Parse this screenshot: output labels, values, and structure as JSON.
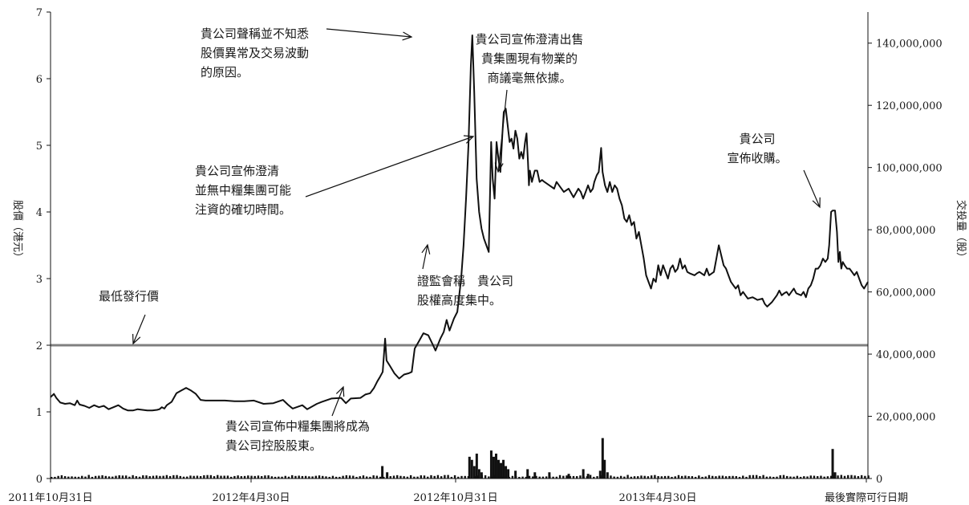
{
  "chart_data": {
    "type": "line",
    "x_ticks": [
      "2011年10月31日",
      "2012年4月30日",
      "2012年10月31日",
      "2013年4月30日",
      "最後實際可行日期"
    ],
    "y_left": {
      "label": "股價（港元）",
      "ticks": [
        "0",
        "1",
        "2",
        "3",
        "4",
        "5",
        "6",
        "7"
      ],
      "range": [
        0,
        7
      ]
    },
    "y_right": {
      "label": "交投量（股）",
      "ticks": [
        "0",
        "20,000,000",
        "40,000,000",
        "60,000,000",
        "80,000,000",
        "100,000,000",
        "120,000,000",
        "140,000,000"
      ],
      "range": [
        0,
        150000000
      ]
    },
    "reference_line": {
      "label": "最低發行價",
      "value": 2.0
    },
    "series": [
      {
        "axis": "left",
        "points": [
          [
            0,
            1.22
          ],
          [
            0.7,
            1.27
          ],
          [
            1.2,
            1.21
          ],
          [
            2,
            1.14
          ],
          [
            3,
            1.12
          ],
          [
            4,
            1.13
          ],
          [
            5,
            1.1
          ],
          [
            5.5,
            1.17
          ],
          [
            6,
            1.11
          ],
          [
            7,
            1.09
          ],
          [
            8,
            1.06
          ],
          [
            9,
            1.1
          ],
          [
            10,
            1.07
          ],
          [
            11,
            1.09
          ],
          [
            12,
            1.04
          ],
          [
            13,
            1.07
          ],
          [
            14,
            1.1
          ],
          [
            15,
            1.05
          ],
          [
            16,
            1.02
          ],
          [
            17,
            1.02
          ],
          [
            18,
            1.04
          ],
          [
            19,
            1.03
          ],
          [
            20,
            1.02
          ],
          [
            21,
            1.02
          ],
          [
            22,
            1.03
          ],
          [
            22.5,
            1.04
          ],
          [
            23,
            1.07
          ],
          [
            23.5,
            1.05
          ],
          [
            24,
            1.1
          ],
          [
            25,
            1.15
          ],
          [
            26,
            1.28
          ],
          [
            27,
            1.32
          ],
          [
            28,
            1.36
          ],
          [
            29,
            1.32
          ],
          [
            30,
            1.27
          ],
          [
            31,
            1.18
          ],
          [
            32,
            1.17
          ],
          [
            34,
            1.17
          ],
          [
            36,
            1.17
          ],
          [
            38,
            1.16
          ],
          [
            40,
            1.16
          ],
          [
            42,
            1.17
          ],
          [
            44,
            1.12
          ],
          [
            46,
            1.13
          ],
          [
            48,
            1.18
          ],
          [
            49,
            1.11
          ],
          [
            50,
            1.05
          ],
          [
            52,
            1.1
          ],
          [
            53,
            1.04
          ],
          [
            54,
            1.08
          ],
          [
            55,
            1.12
          ],
          [
            56,
            1.15
          ],
          [
            58,
            1.2
          ],
          [
            60,
            1.21
          ],
          [
            61,
            1.13
          ],
          [
            62,
            1.2
          ],
          [
            64,
            1.21
          ],
          [
            65,
            1.26
          ],
          [
            66,
            1.28
          ],
          [
            66.8,
            1.36
          ],
          [
            67.5,
            1.46
          ],
          [
            68,
            1.52
          ],
          [
            68.6,
            1.6
          ],
          [
            69.1,
            2.1
          ],
          [
            69.4,
            1.77
          ],
          [
            70,
            1.7
          ],
          [
            71,
            1.58
          ],
          [
            72,
            1.5
          ],
          [
            73,
            1.56
          ],
          [
            74,
            1.58
          ],
          [
            74.6,
            1.6
          ],
          [
            75.2,
            1.95
          ],
          [
            76,
            2.05
          ],
          [
            77,
            2.18
          ],
          [
            78,
            2.15
          ],
          [
            79,
            2.0
          ],
          [
            79.5,
            1.92
          ],
          [
            80.5,
            2.1
          ],
          [
            81.2,
            2.2
          ],
          [
            81.8,
            2.38
          ],
          [
            82.4,
            2.22
          ],
          [
            83.3,
            2.4
          ],
          [
            84,
            2.5
          ],
          [
            84.8,
            3.0
          ],
          [
            85.3,
            3.5
          ],
          [
            85.8,
            4.2
          ],
          [
            86.3,
            5.0
          ],
          [
            86.8,
            6.2
          ],
          [
            87.1,
            6.65
          ],
          [
            87.5,
            5.8
          ],
          [
            88,
            4.5
          ],
          [
            88.5,
            4.0
          ],
          [
            89,
            3.75
          ],
          [
            89.5,
            3.6
          ],
          [
            90,
            3.5
          ],
          [
            90.5,
            3.4
          ],
          [
            91,
            5.05
          ],
          [
            91.3,
            4.5
          ],
          [
            91.7,
            4.2
          ],
          [
            92.1,
            5.05
          ],
          [
            92.5,
            4.8
          ],
          [
            92.9,
            4.6
          ],
          [
            93.3,
            5.15
          ],
          [
            93.6,
            5.5
          ],
          [
            94,
            5.55
          ],
          [
            94.4,
            5.3
          ],
          [
            94.8,
            5.05
          ],
          [
            95.2,
            5.1
          ],
          [
            95.6,
            4.95
          ],
          [
            96,
            5.22
          ],
          [
            96.4,
            5.1
          ],
          [
            96.8,
            4.8
          ],
          [
            97.2,
            4.9
          ],
          [
            97.6,
            4.8
          ],
          [
            98,
            5.05
          ],
          [
            98.3,
            5.18
          ],
          [
            98.6,
            4.75
          ],
          [
            98.8,
            4.4
          ],
          [
            99,
            4.62
          ],
          [
            99.4,
            4.45
          ],
          [
            100,
            4.62
          ],
          [
            100.5,
            4.62
          ],
          [
            101,
            4.45
          ],
          [
            101.5,
            4.48
          ],
          [
            102,
            4.45
          ],
          [
            103,
            4.4
          ],
          [
            104,
            4.35
          ],
          [
            104.5,
            4.45
          ],
          [
            105,
            4.4
          ],
          [
            106,
            4.3
          ],
          [
            107,
            4.35
          ],
          [
            108,
            4.22
          ],
          [
            109,
            4.35
          ],
          [
            109.5,
            4.3
          ],
          [
            110,
            4.2
          ],
          [
            110.5,
            4.3
          ],
          [
            111,
            4.4
          ],
          [
            111.5,
            4.3
          ],
          [
            112,
            4.35
          ],
          [
            112.3,
            4.45
          ],
          [
            112.8,
            4.55
          ],
          [
            113.2,
            4.6
          ],
          [
            113.7,
            4.96
          ],
          [
            114,
            4.6
          ],
          [
            114.5,
            4.4
          ],
          [
            115,
            4.3
          ],
          [
            115.5,
            4.45
          ],
          [
            116,
            4.3
          ],
          [
            116.5,
            4.4
          ],
          [
            117,
            4.35
          ],
          [
            117.5,
            4.2
          ],
          [
            118,
            4.1
          ],
          [
            118.5,
            3.9
          ],
          [
            119,
            3.85
          ],
          [
            119.5,
            3.95
          ],
          [
            120,
            3.8
          ],
          [
            120.5,
            3.85
          ],
          [
            121,
            3.6
          ],
          [
            121.5,
            3.7
          ],
          [
            122,
            3.5
          ],
          [
            122.5,
            3.3
          ],
          [
            123,
            3.05
          ],
          [
            123.5,
            2.95
          ],
          [
            124,
            2.85
          ],
          [
            124.5,
            3.0
          ],
          [
            125,
            2.95
          ],
          [
            125.5,
            3.2
          ],
          [
            126,
            3.05
          ],
          [
            126.5,
            3.2
          ],
          [
            127,
            3.1
          ],
          [
            127.5,
            3.0
          ],
          [
            128,
            3.15
          ],
          [
            128.5,
            3.2
          ],
          [
            129,
            3.1
          ],
          [
            129.5,
            3.15
          ],
          [
            130,
            3.3
          ],
          [
            130.5,
            3.15
          ],
          [
            131,
            3.2
          ],
          [
            131.5,
            3.1
          ],
          [
            132,
            3.08
          ],
          [
            133,
            3.05
          ],
          [
            133.5,
            3.08
          ],
          [
            134,
            3.1
          ],
          [
            135,
            3.05
          ],
          [
            135.5,
            3.15
          ],
          [
            136,
            3.05
          ],
          [
            137,
            3.1
          ],
          [
            137.5,
            3.3
          ],
          [
            138,
            3.5
          ],
          [
            138.5,
            3.35
          ],
          [
            139,
            3.2
          ],
          [
            139.5,
            3.15
          ],
          [
            140,
            3.05
          ],
          [
            140.5,
            2.95
          ],
          [
            141,
            2.9
          ],
          [
            141.5,
            2.85
          ],
          [
            142,
            2.9
          ],
          [
            142.5,
            2.75
          ],
          [
            143,
            2.8
          ],
          [
            143.5,
            2.75
          ],
          [
            144,
            2.7
          ],
          [
            145,
            2.72
          ],
          [
            146,
            2.68
          ],
          [
            147,
            2.7
          ],
          [
            147.5,
            2.62
          ],
          [
            148,
            2.58
          ],
          [
            149,
            2.65
          ],
          [
            150,
            2.75
          ],
          [
            150.5,
            2.82
          ],
          [
            151,
            2.75
          ],
          [
            151.5,
            2.78
          ],
          [
            152,
            2.8
          ],
          [
            152.5,
            2.75
          ],
          [
            153,
            2.8
          ],
          [
            153.5,
            2.85
          ],
          [
            154,
            2.78
          ],
          [
            155,
            2.75
          ],
          [
            155.5,
            2.8
          ],
          [
            156,
            2.72
          ],
          [
            156.5,
            2.85
          ],
          [
            157,
            2.9
          ],
          [
            157.5,
            3.0
          ],
          [
            158,
            3.15
          ],
          [
            158.5,
            3.15
          ],
          [
            159,
            3.2
          ],
          [
            159.5,
            3.3
          ],
          [
            160,
            3.25
          ],
          [
            160.5,
            3.3
          ],
          [
            160.8,
            3.5
          ],
          [
            161.2,
            4.0
          ],
          [
            161.5,
            4.02
          ],
          [
            162,
            4.02
          ],
          [
            162.4,
            3.7
          ],
          [
            162.7,
            3.25
          ],
          [
            163,
            3.4
          ],
          [
            163.3,
            3.15
          ],
          [
            163.6,
            3.25
          ],
          [
            164,
            3.2
          ],
          [
            164.5,
            3.15
          ],
          [
            165,
            3.15
          ],
          [
            165.5,
            3.1
          ],
          [
            166,
            3.05
          ],
          [
            166.5,
            3.1
          ],
          [
            167,
            3.0
          ],
          [
            167.5,
            2.9
          ],
          [
            168,
            2.85
          ],
          [
            168.4,
            2.9
          ],
          [
            168.8,
            2.95
          ]
        ]
      },
      {
        "axis": "right",
        "type": "bar",
        "points": [
          [
            68.5,
            4000000
          ],
          [
            69.5,
            2000000
          ],
          [
            86.5,
            7000000
          ],
          [
            87,
            6000000
          ],
          [
            87.5,
            4000000
          ],
          [
            88,
            8000000
          ],
          [
            88.5,
            3000000
          ],
          [
            89,
            2000000
          ],
          [
            91,
            9000000
          ],
          [
            91.5,
            7000000
          ],
          [
            92,
            8000000
          ],
          [
            92.5,
            6000000
          ],
          [
            93,
            5000000
          ],
          [
            93.5,
            6000000
          ],
          [
            94,
            4000000
          ],
          [
            94.5,
            3000000
          ],
          [
            96,
            2500000
          ],
          [
            98.5,
            3000000
          ],
          [
            100,
            2000000
          ],
          [
            103,
            2000000
          ],
          [
            107,
            1500000
          ],
          [
            110,
            3000000
          ],
          [
            111,
            1500000
          ],
          [
            113.5,
            2500000
          ],
          [
            114,
            13000000
          ],
          [
            114.4,
            6000000
          ],
          [
            115,
            2000000
          ],
          [
            161.5,
            9500000
          ],
          [
            162,
            2000000
          ]
        ]
      }
    ],
    "annotations": [
      {
        "lines": [
          "貴公司聲稱並不知悉",
          "股價異常及交易波動",
          "的原因。"
        ]
      },
      {
        "lines": [
          "貴公司宣佈澄清出售",
          "貴集團現有物業的",
          "商議毫無依據。"
        ]
      },
      {
        "lines": [
          "貴公司宣佈澄清",
          "並無中糧集團可能",
          "注資的確切時間。"
        ]
      },
      {
        "lines": [
          "證監會稱　貴公司",
          "股權高度集中。"
        ]
      },
      {
        "lines": [
          "最低發行價"
        ]
      },
      {
        "lines": [
          "貴公司宣佈中糧集團將成為",
          "貴公司控股股東。"
        ]
      },
      {
        "lines": [
          "貴公司",
          "宣佈收購。"
        ]
      }
    ]
  }
}
